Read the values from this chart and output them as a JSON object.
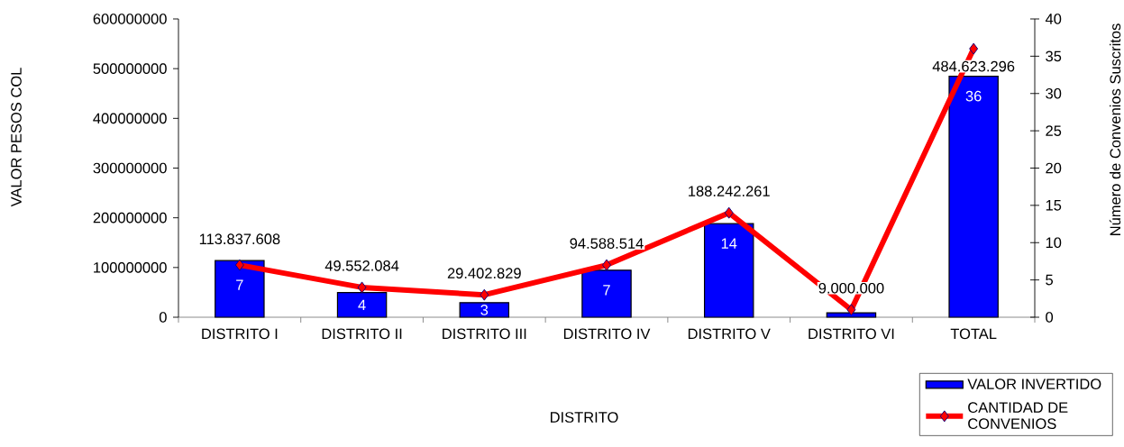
{
  "chart_data": {
    "type": "bar",
    "xlabel": "DISTRITO",
    "ylabel": "VALOR PESOS COL",
    "y2label": "Número de Convenios Suscritos",
    "categories": [
      "DISTRITO I",
      "DISTRITO II",
      "DISTRITO III",
      "DISTRITO IV",
      "DISTRITO V",
      "DISTRITO VI",
      "TOTAL"
    ],
    "series": [
      {
        "name": "VALOR INVERTIDO",
        "color": "#0000ff",
        "values": [
          113837608,
          49552084,
          29402829,
          94588514,
          188242261,
          9000000,
          484623296
        ],
        "value_labels": [
          "113.837.608",
          "49.552.084",
          "29.402.829",
          "94.588.514",
          "188.242.261",
          "9.000.000",
          "484.623.296"
        ]
      },
      {
        "name": "CANTIDAD DE CONVENIOS",
        "type": "line",
        "axis": "y2",
        "color": "#ff0000",
        "marker": "diamond",
        "line_style": "solid",
        "values": [
          7,
          4,
          3,
          7,
          14,
          1,
          36
        ],
        "value_labels": [
          "7",
          "4",
          "3",
          "7",
          "14",
          null,
          "36"
        ]
      }
    ],
    "ylim": [
      0,
      600000000
    ],
    "yticks": [
      0,
      100000000,
      200000000,
      300000000,
      400000000,
      500000000,
      600000000
    ],
    "y2lim": [
      0,
      40
    ],
    "y2ticks": [
      0,
      5,
      10,
      15,
      20,
      25,
      30,
      35,
      40
    ],
    "legend": "bottom right"
  }
}
